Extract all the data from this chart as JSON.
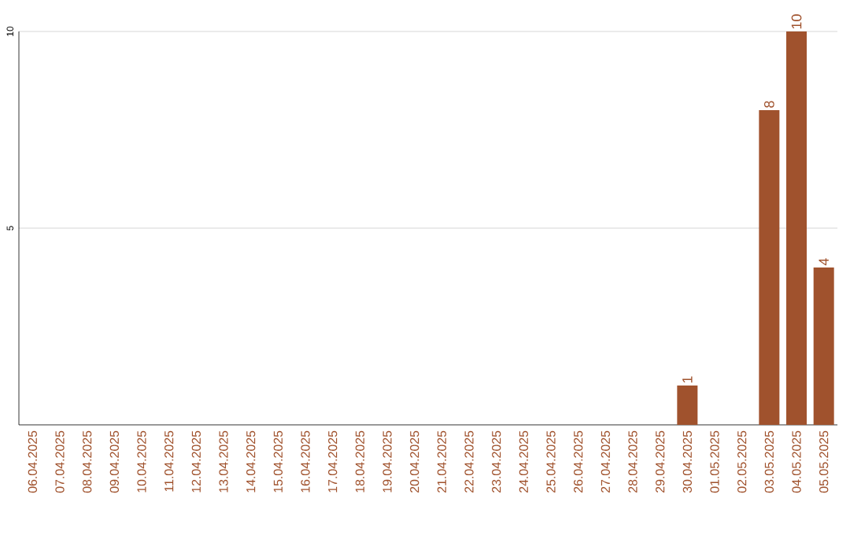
{
  "chart_data": {
    "type": "bar",
    "categories": [
      "06.04.2025",
      "07.04.2025",
      "08.04.2025",
      "09.04.2025",
      "10.04.2025",
      "11.04.2025",
      "12.04.2025",
      "13.04.2025",
      "14.04.2025",
      "15.04.2025",
      "16.04.2025",
      "17.04.2025",
      "18.04.2025",
      "19.04.2025",
      "20.04.2025",
      "21.04.2025",
      "22.04.2025",
      "23.04.2025",
      "24.04.2025",
      "25.04.2025",
      "26.04.2025",
      "27.04.2025",
      "28.04.2025",
      "29.04.2025",
      "30.04.2025",
      "01.05.2025",
      "02.05.2025",
      "03.05.2025",
      "04.05.2025",
      "05.05.2025"
    ],
    "values": [
      0,
      0,
      0,
      0,
      0,
      0,
      0,
      0,
      0,
      0,
      0,
      0,
      0,
      0,
      0,
      0,
      0,
      0,
      0,
      0,
      0,
      0,
      0,
      0,
      1,
      0,
      0,
      8,
      10,
      4
    ],
    "value_labels": [
      null,
      null,
      null,
      null,
      null,
      null,
      null,
      null,
      null,
      null,
      null,
      null,
      null,
      null,
      null,
      null,
      null,
      null,
      null,
      null,
      null,
      null,
      null,
      null,
      "1",
      null,
      null,
      "8",
      "10",
      "4"
    ],
    "color": "#a0522d",
    "ylim": [
      0,
      10
    ],
    "yticks": [
      5,
      10
    ],
    "grid": "y"
  }
}
